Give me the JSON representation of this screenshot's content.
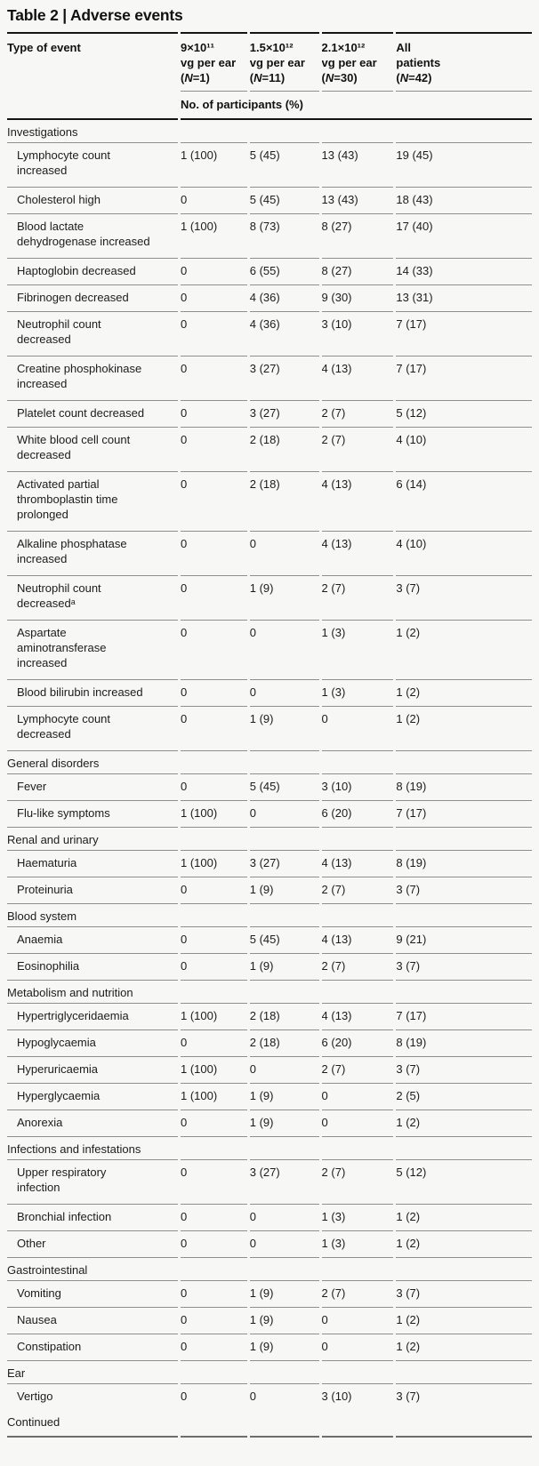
{
  "title": "Table 2 | Adverse events",
  "header": {
    "type_of_event": "Type of event",
    "subheader": "No. of participants (%)",
    "doses": [
      {
        "dose": "9×10¹¹",
        "unit": "vg per ear",
        "n_label": "(N=1)"
      },
      {
        "dose": "1.5×10¹²",
        "unit": "vg per ear",
        "n_label": "(N=11)"
      },
      {
        "dose": "2.1×10¹²",
        "unit": "vg per ear",
        "n_label": "(N=30)"
      },
      {
        "dose": "All",
        "unit": "patients",
        "n_label": "(N=42)"
      }
    ]
  },
  "sections": [
    {
      "label": "Investigations",
      "rows": [
        {
          "event": "Lymphocyte count\nincreased",
          "values": [
            "1 (100)",
            "5 (45)",
            "13 (43)",
            "19 (45)"
          ]
        },
        {
          "event": "Cholesterol high",
          "values": [
            "0",
            "5 (45)",
            "13 (43)",
            "18 (43)"
          ]
        },
        {
          "event": "Blood lactate\ndehydrogenase increased",
          "values": [
            "1 (100)",
            "8 (73)",
            "8 (27)",
            "17 (40)"
          ]
        },
        {
          "event": "Haptoglobin decreased",
          "values": [
            "0",
            "6 (55)",
            "8 (27)",
            "14 (33)"
          ]
        },
        {
          "event": "Fibrinogen decreased",
          "values": [
            "0",
            "4 (36)",
            "9 (30)",
            "13 (31)"
          ]
        },
        {
          "event": "Neutrophil count\ndecreased",
          "values": [
            "0",
            "4 (36)",
            "3 (10)",
            "7 (17)"
          ]
        },
        {
          "event": "Creatine phosphokinase\nincreased",
          "values": [
            "0",
            "3 (27)",
            "4 (13)",
            "7 (17)"
          ]
        },
        {
          "event": "Platelet count decreased",
          "values": [
            "0",
            "3 (27)",
            "2 (7)",
            "5 (12)"
          ]
        },
        {
          "event": "White blood cell count\ndecreased",
          "values": [
            "0",
            "2 (18)",
            "2 (7)",
            "4 (10)"
          ]
        },
        {
          "event": "Activated partial\nthromboplastin time\nprolonged",
          "values": [
            "0",
            "2 (18)",
            "4 (13)",
            "6 (14)"
          ]
        },
        {
          "event": "Alkaline phosphatase\nincreased",
          "values": [
            "0",
            "0",
            "4 (13)",
            "4 (10)"
          ]
        },
        {
          "event": "Neutrophil count\ndecreasedᵃ",
          "values": [
            "0",
            "1 (9)",
            "2 (7)",
            "3 (7)"
          ]
        },
        {
          "event": "Aspartate\naminotransferase\nincreased",
          "values": [
            "0",
            "0",
            "1 (3)",
            "1 (2)"
          ]
        },
        {
          "event": "Blood bilirubin increased",
          "values": [
            "0",
            "0",
            "1 (3)",
            "1 (2)"
          ]
        },
        {
          "event": "Lymphocyte count\ndecreased",
          "values": [
            "0",
            "1 (9)",
            "0",
            "1 (2)"
          ]
        }
      ]
    },
    {
      "label": "General disorders",
      "rows": [
        {
          "event": "Fever",
          "values": [
            "0",
            "5 (45)",
            "3 (10)",
            "8 (19)"
          ]
        },
        {
          "event": "Flu-like symptoms",
          "values": [
            "1 (100)",
            "0",
            "6 (20)",
            "7 (17)"
          ]
        }
      ]
    },
    {
      "label": "Renal and urinary",
      "rows": [
        {
          "event": "Haematuria",
          "values": [
            "1 (100)",
            "3 (27)",
            "4 (13)",
            "8 (19)"
          ]
        },
        {
          "event": "Proteinuria",
          "values": [
            "0",
            "1 (9)",
            "2 (7)",
            "3 (7)"
          ]
        }
      ]
    },
    {
      "label": "Blood system",
      "rows": [
        {
          "event": "Anaemia",
          "values": [
            "0",
            "5 (45)",
            "4 (13)",
            "9 (21)"
          ]
        },
        {
          "event": "Eosinophilia",
          "values": [
            "0",
            "1 (9)",
            "2 (7)",
            "3 (7)"
          ]
        }
      ]
    },
    {
      "label": "Metabolism and nutrition",
      "rows": [
        {
          "event": "Hypertriglyceridaemia",
          "values": [
            "1 (100)",
            "2 (18)",
            "4 (13)",
            "7 (17)"
          ]
        },
        {
          "event": "Hypoglycaemia",
          "values": [
            "0",
            "2 (18)",
            "6 (20)",
            "8 (19)"
          ]
        },
        {
          "event": "Hyperuricaemia",
          "values": [
            "1 (100)",
            "0",
            "2 (7)",
            "3 (7)"
          ]
        },
        {
          "event": "Hyperglycaemia",
          "values": [
            "1 (100)",
            "1 (9)",
            "0",
            "2 (5)"
          ]
        },
        {
          "event": "Anorexia",
          "values": [
            "0",
            "1 (9)",
            "0",
            "1 (2)"
          ]
        }
      ]
    },
    {
      "label": "Infections and infestations",
      "rows": [
        {
          "event": "Upper respiratory\ninfection",
          "values": [
            "0",
            "3 (27)",
            "2 (7)",
            "5 (12)"
          ]
        },
        {
          "event": "Bronchial infection",
          "values": [
            "0",
            "0",
            "1 (3)",
            "1 (2)"
          ]
        },
        {
          "event": "Other",
          "values": [
            "0",
            "0",
            "1 (3)",
            "1 (2)"
          ]
        }
      ]
    },
    {
      "label": "Gastrointestinal",
      "rows": [
        {
          "event": "Vomiting",
          "values": [
            "0",
            "1 (9)",
            "2 (7)",
            "3 (7)"
          ]
        },
        {
          "event": "Nausea",
          "values": [
            "0",
            "1 (9)",
            "0",
            "1 (2)"
          ]
        },
        {
          "event": "Constipation",
          "values": [
            "0",
            "1 (9)",
            "0",
            "1 (2)"
          ]
        }
      ]
    },
    {
      "label": "Ear",
      "rows": [
        {
          "event": "Vertigo",
          "values": [
            "0",
            "0",
            "3 (10)",
            "3 (7)"
          ]
        }
      ]
    }
  ],
  "continued_label": "Continued",
  "colors": {
    "background": "#f7f7f6",
    "text": "#1c1c1c",
    "heading_text": "#111111",
    "rule_heavy": "#141414",
    "rule_light": "#8e8e8e",
    "rule_continued": "#6e6e6e"
  }
}
